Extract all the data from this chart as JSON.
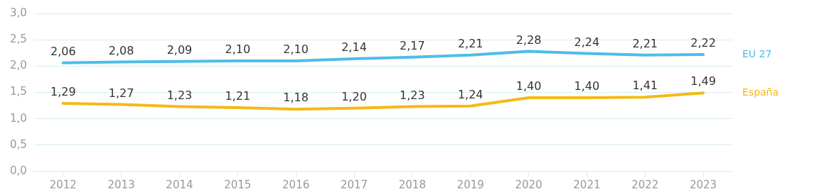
{
  "chart_data": {
    "type": "line",
    "categories": [
      "2012",
      "2013",
      "2014",
      "2015",
      "2016",
      "2017",
      "2018",
      "2019",
      "2020",
      "2021",
      "2022",
      "2023"
    ],
    "series": [
      {
        "name": "EU 27",
        "color": "#4dbde9",
        "values": [
          2.06,
          2.08,
          2.09,
          2.1,
          2.1,
          2.14,
          2.17,
          2.21,
          2.28,
          2.24,
          2.21,
          2.22
        ],
        "value_labels": [
          "2,06",
          "2,08",
          "2,09",
          "2,10",
          "2,10",
          "2,14",
          "2,17",
          "2,21",
          "2,28",
          "2,24",
          "2,21",
          "2,22"
        ]
      },
      {
        "name": "España",
        "color": "#f5b915",
        "values": [
          1.29,
          1.27,
          1.23,
          1.21,
          1.18,
          1.2,
          1.23,
          1.24,
          1.4,
          1.4,
          1.41,
          1.49
        ],
        "value_labels": [
          "1,29",
          "1,27",
          "1,23",
          "1,21",
          "1,18",
          "1,20",
          "1,23",
          "1,24",
          "1,40",
          "1,40",
          "1,41",
          "1,49"
        ]
      }
    ],
    "ylim": [
      0,
      3
    ],
    "yticks": [
      {
        "value": 0,
        "label": "0,0"
      },
      {
        "value": 0.5,
        "label": "0,5"
      },
      {
        "value": 1,
        "label": "1,0"
      },
      {
        "value": 1.5,
        "label": "1,5"
      },
      {
        "value": 2,
        "label": "2,0"
      },
      {
        "value": 2.5,
        "label": "2,5"
      },
      {
        "value": 3,
        "label": "3,0"
      }
    ],
    "grid": "y",
    "legend": false,
    "marker": "none",
    "line_style": "solid"
  }
}
